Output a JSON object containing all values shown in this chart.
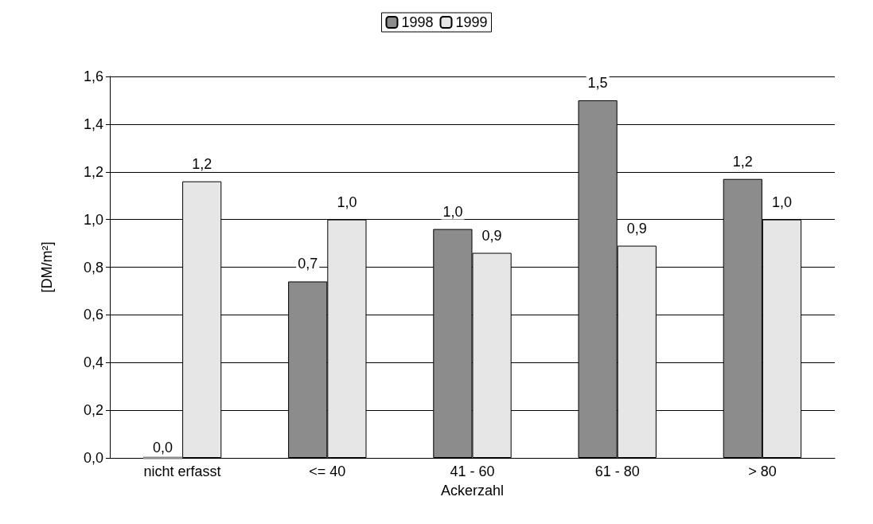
{
  "chart_data": {
    "type": "bar",
    "xlabel": "Ackerzahl",
    "ylabel": "[DM/m²]",
    "categories": [
      "nicht erfasst",
      "<= 40",
      "41 - 60",
      "61 - 80",
      "> 80"
    ],
    "series": [
      {
        "name": "1998",
        "color": "#8c8c8c",
        "values": [
          0,
          0.74,
          0.96,
          1.5,
          1.17
        ],
        "value_labels": [
          "0,0",
          "0,7",
          "1,0",
          "1,5",
          "1,2"
        ]
      },
      {
        "name": "1999",
        "color": "#e6e6e6",
        "values": [
          1.16,
          1.0,
          0.86,
          0.89,
          1.0
        ],
        "value_labels": [
          "1,2",
          "1,0",
          "0,9",
          "0,9",
          "1,0"
        ]
      }
    ],
    "ylim": [
      0,
      1.6
    ],
    "yticks": [
      {
        "value": 0,
        "label": "0,0"
      },
      {
        "value": 0.2,
        "label": "0,2"
      },
      {
        "value": 0.4,
        "label": "0,4"
      },
      {
        "value": 0.6,
        "label": "0,6"
      },
      {
        "value": 0.8,
        "label": "0,8"
      },
      {
        "value": 1.0,
        "label": "1,0"
      },
      {
        "value": 1.2,
        "label": "1,2"
      },
      {
        "value": 1.4,
        "label": "1,4"
      },
      {
        "value": 1.6,
        "label": "1,6"
      }
    ],
    "grid": "y",
    "legend": "top"
  }
}
